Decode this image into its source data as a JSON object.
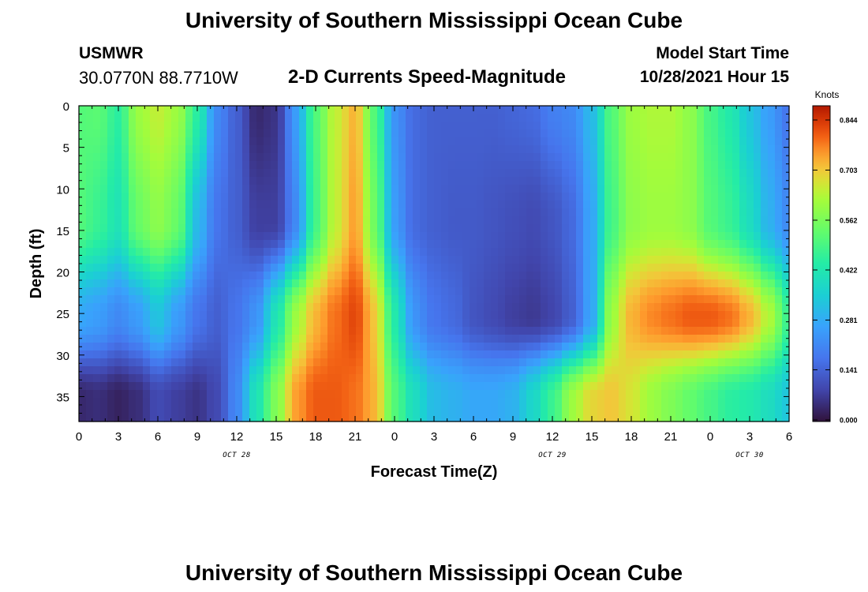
{
  "header": {
    "title": "University of Southern Mississippi Ocean Cube",
    "station": "USMWR",
    "coords": "30.0770N  88.7710W",
    "subtitle": "2-D Currents Speed-Magnitude",
    "model_start_label": "Model Start Time",
    "model_start_time": "10/28/2021 Hour 15"
  },
  "footer": {
    "title": "University of Southern Mississippi Ocean Cube"
  },
  "chart_data": {
    "type": "heatmap",
    "title": "2-D Currents Speed-Magnitude",
    "xlabel": "Forecast Time(Z)",
    "ylabel": "Depth (ft)",
    "x_hours": [
      0,
      54
    ],
    "y_depth_ft": [
      0,
      38
    ],
    "x_tick_labels": [
      "0",
      "3",
      "6",
      "9",
      "12",
      "15",
      "18",
      "21",
      "0",
      "3",
      "6",
      "9",
      "12",
      "15",
      "18",
      "21",
      "0",
      "3",
      "6"
    ],
    "y_tick_labels": [
      "0",
      "5",
      "10",
      "15",
      "20",
      "25",
      "30",
      "35"
    ],
    "date_labels": [
      {
        "text": "OCT 28",
        "hour": 12
      },
      {
        "text": "OCT 29",
        "hour": 36
      },
      {
        "text": "OCT 30",
        "hour": 51
      }
    ],
    "colorbar": {
      "unit": "Knots",
      "ticks": [
        "0.844",
        "0.703",
        "0.562",
        "0.422",
        "0.281",
        "0.141",
        "0.000"
      ],
      "vmin": 0.0,
      "vmax": 0.9
    },
    "colormap_stops": [
      [
        0.0,
        "#30123b"
      ],
      [
        0.1,
        "#4145ab"
      ],
      [
        0.2,
        "#4675ed"
      ],
      [
        0.3,
        "#39a2fc"
      ],
      [
        0.4,
        "#1bcfd4"
      ],
      [
        0.5,
        "#24eca6"
      ],
      [
        0.6,
        "#61fc6c"
      ],
      [
        0.7,
        "#a4fc3b"
      ],
      [
        0.75,
        "#d1e834"
      ],
      [
        0.8,
        "#f3c63a"
      ],
      [
        0.85,
        "#fe9b2d"
      ],
      [
        0.9,
        "#f36315"
      ],
      [
        0.95,
        "#d93806"
      ],
      [
        1.0,
        "#b11901"
      ],
      [
        1.1,
        "#7a0402"
      ]
    ],
    "speed_profiles_knots": {
      "hour": [
        0,
        1.5,
        3,
        4.5,
        6,
        7.5,
        9,
        10.5,
        12,
        13.5,
        15,
        16.5,
        18,
        19.5,
        21,
        22.5,
        24,
        25.5,
        27,
        28.5,
        30,
        31.5,
        33,
        34.5,
        36,
        37.5,
        39,
        40.5,
        42,
        43.5,
        45,
        46.5,
        48,
        49.5,
        51,
        52.5,
        54
      ],
      "surface": [
        0.52,
        0.53,
        0.46,
        0.62,
        0.66,
        0.62,
        0.46,
        0.22,
        0.14,
        0.04,
        0.06,
        0.26,
        0.52,
        0.66,
        0.74,
        0.52,
        0.24,
        0.16,
        0.14,
        0.14,
        0.14,
        0.14,
        0.15,
        0.16,
        0.2,
        0.22,
        0.32,
        0.52,
        0.62,
        0.64,
        0.64,
        0.6,
        0.5,
        0.44,
        0.34,
        0.26,
        0.18
      ],
      "mid": [
        0.52,
        0.48,
        0.42,
        0.55,
        0.6,
        0.55,
        0.32,
        0.18,
        0.14,
        0.08,
        0.08,
        0.22,
        0.5,
        0.66,
        0.76,
        0.56,
        0.26,
        0.16,
        0.14,
        0.13,
        0.13,
        0.12,
        0.11,
        0.1,
        0.12,
        0.16,
        0.28,
        0.5,
        0.6,
        0.62,
        0.62,
        0.6,
        0.52,
        0.48,
        0.4,
        0.3,
        0.22
      ],
      "d25": [
        0.28,
        0.26,
        0.22,
        0.26,
        0.34,
        0.26,
        0.18,
        0.14,
        0.18,
        0.24,
        0.42,
        0.62,
        0.74,
        0.8,
        0.84,
        0.72,
        0.44,
        0.24,
        0.18,
        0.16,
        0.12,
        0.1,
        0.08,
        0.07,
        0.09,
        0.14,
        0.28,
        0.62,
        0.74,
        0.78,
        0.8,
        0.82,
        0.82,
        0.8,
        0.74,
        0.64,
        0.48
      ],
      "bottom": [
        0.04,
        0.05,
        0.03,
        0.05,
        0.1,
        0.08,
        0.06,
        0.1,
        0.22,
        0.42,
        0.58,
        0.76,
        0.82,
        0.82,
        0.8,
        0.74,
        0.52,
        0.4,
        0.32,
        0.3,
        0.28,
        0.28,
        0.3,
        0.38,
        0.48,
        0.62,
        0.7,
        0.72,
        0.68,
        0.62,
        0.58,
        0.54,
        0.5,
        0.46,
        0.44,
        0.4,
        0.34
      ]
    }
  }
}
